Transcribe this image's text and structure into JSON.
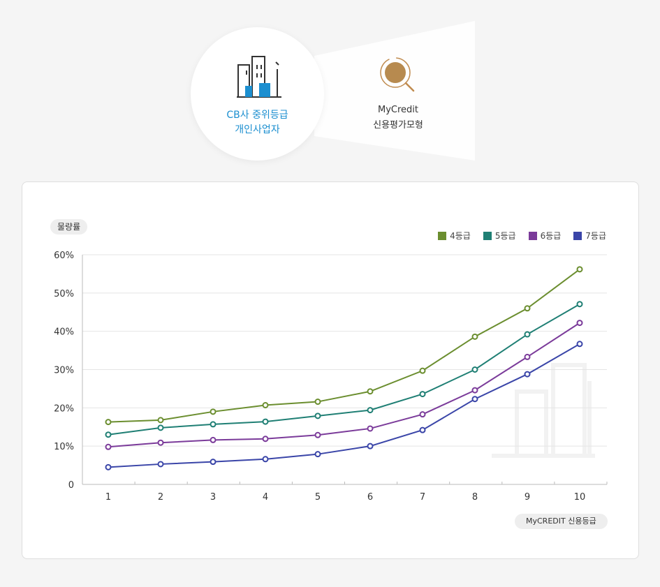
{
  "illustration": {
    "cb_label_line1": "CB사 중위등급",
    "cb_label_line2": "개인사업자",
    "cb_icon": "buildings-icon",
    "mycredit_label_line1": "MyCredit",
    "mycredit_label_line2": "신용평가모형",
    "mycredit_icon": "magnifier-icon"
  },
  "chart_data": {
    "type": "line",
    "ylabel": "물량률",
    "xlabel": "MyCREDIT 신용등급",
    "categories": [
      1,
      2,
      3,
      4,
      5,
      6,
      7,
      8,
      9,
      10
    ],
    "ylim": [
      0,
      60
    ],
    "yticks": [
      "0",
      "10%",
      "20%",
      "30%",
      "40%",
      "50%",
      "60%"
    ],
    "grid": true,
    "legend_position": "top-right",
    "series": [
      {
        "name": "4등급",
        "color": "#6b8e2f",
        "values": [
          16.3,
          16.8,
          19.0,
          20.7,
          21.6,
          24.3,
          29.7,
          38.6,
          46.0,
          56.2
        ]
      },
      {
        "name": "5등급",
        "color": "#1f7f74",
        "values": [
          13.0,
          14.8,
          15.7,
          16.4,
          17.9,
          19.4,
          23.6,
          30.0,
          39.2,
          47.1
        ]
      },
      {
        "name": "6등급",
        "color": "#7b3b9a",
        "values": [
          9.8,
          10.9,
          11.6,
          11.9,
          12.9,
          14.6,
          18.3,
          24.6,
          33.3,
          42.2
        ]
      },
      {
        "name": "7등급",
        "color": "#3a45a8",
        "values": [
          4.5,
          5.3,
          5.9,
          6.6,
          7.9,
          10.0,
          14.2,
          22.3,
          28.8,
          36.7
        ]
      }
    ]
  }
}
